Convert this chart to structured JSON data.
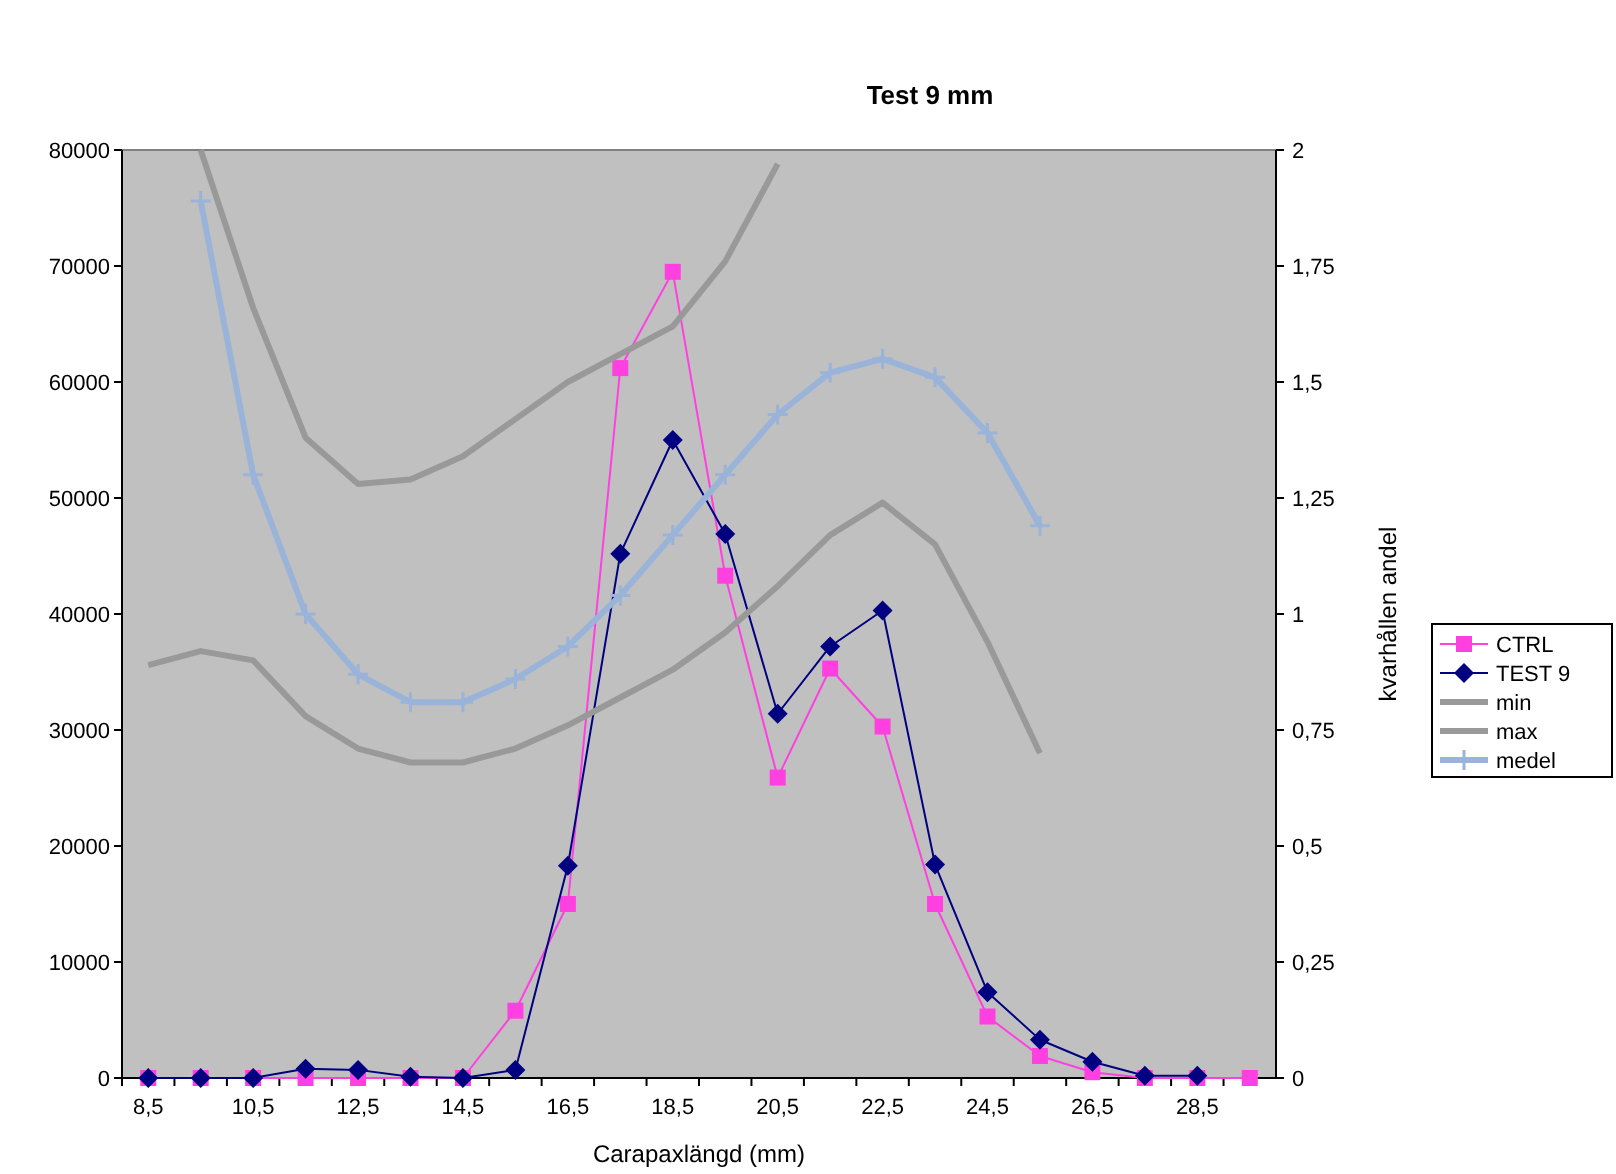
{
  "chart_data": {
    "type": "line",
    "title": "Test 9 mm",
    "xlabel": "Carapaxlängd (mm)",
    "y2label": "kvarhållen andel",
    "categories": [
      "8,5",
      null,
      "10,5",
      null,
      "12,5",
      null,
      "14,5",
      null,
      "16,5",
      null,
      "18,5",
      null,
      "20,5",
      null,
      "22,5",
      null,
      "24,5",
      null,
      "26,5",
      null,
      "28,5",
      null
    ],
    "series": [
      {
        "name": "CTRL",
        "color": "#ff40e0",
        "marker": "square",
        "values": [
          0,
          0,
          0,
          0,
          0,
          0,
          0,
          5800,
          15000,
          61200,
          69500,
          43300,
          25900,
          35300,
          30300,
          15000,
          5300,
          1900,
          500,
          0,
          0,
          0
        ]
      },
      {
        "name": "TEST 9",
        "color": "#000080",
        "marker": "diamond",
        "values": [
          0,
          0,
          0,
          800,
          700,
          100,
          0,
          700,
          18300,
          45200,
          55000,
          46900,
          31400,
          37200,
          40300,
          18400,
          7400,
          3300,
          1400,
          200,
          200,
          null
        ]
      },
      {
        "name": "min",
        "color": "#999999",
        "marker": "none",
        "axis": "y2",
        "values": [
          0.89,
          0.92,
          0.9,
          0.78,
          0.71,
          0.68,
          0.68,
          0.71,
          0.76,
          0.82,
          0.88,
          0.96,
          1.06,
          1.17,
          1.24,
          1.15,
          0.94,
          0.7,
          null,
          null,
          null,
          null
        ]
      },
      {
        "name": "max",
        "color": "#999999",
        "marker": "none",
        "axis": "y2",
        "values": [
          null,
          2.0,
          1.66,
          1.38,
          1.28,
          1.29,
          1.34,
          1.42,
          1.5,
          1.56,
          1.62,
          1.76,
          1.97,
          null,
          null,
          null,
          null,
          null,
          null,
          null,
          null,
          null
        ]
      },
      {
        "name": "medel",
        "color": "#99b3d9",
        "marker": "cross",
        "axis": "y2",
        "values": [
          null,
          1.89,
          1.3,
          1.0,
          0.87,
          0.81,
          0.81,
          0.86,
          0.93,
          1.04,
          1.17,
          1.3,
          1.43,
          1.52,
          1.55,
          1.51,
          1.39,
          1.19,
          null,
          null,
          null,
          null
        ]
      }
    ],
    "ylim": [
      0,
      80000
    ],
    "yticks": [
      0,
      10000,
      20000,
      30000,
      40000,
      50000,
      60000,
      70000,
      80000
    ],
    "y2lim": [
      0,
      2
    ],
    "y2ticks": [
      0,
      {
        "value": 0.25,
        "label": "0,25"
      },
      {
        "value": 0.5,
        "label": "0,5"
      },
      {
        "value": 0.75,
        "label": "0,75"
      },
      1,
      {
        "value": 1.25,
        "label": "1,25"
      },
      {
        "value": 1.5,
        "label": "1,5"
      },
      {
        "value": 1.75,
        "label": "1,75"
      },
      2
    ],
    "grid": false,
    "legend": "right"
  }
}
